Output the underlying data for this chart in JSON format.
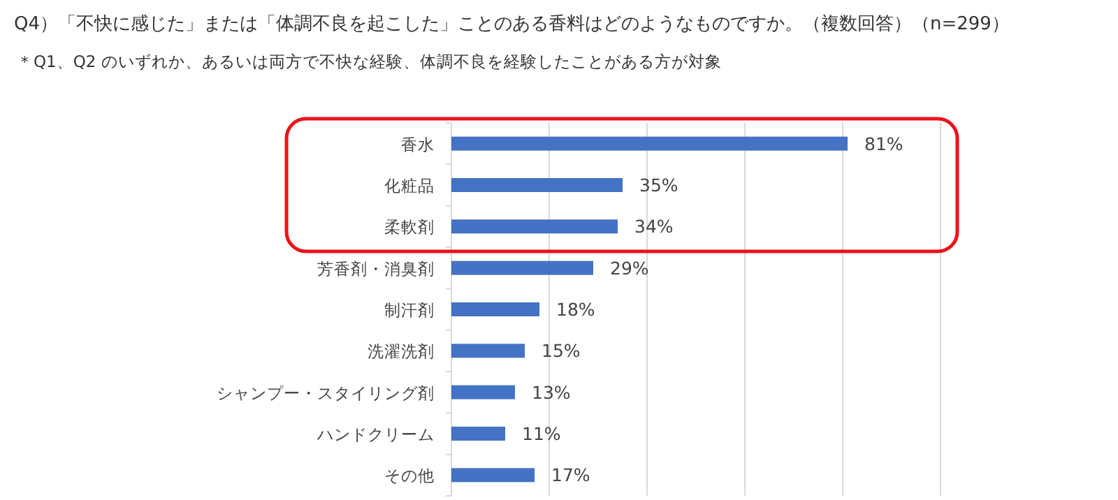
{
  "chart_data": {
    "type": "bar",
    "orientation": "horizontal",
    "title": "Q4）「不快に感じた」または「体調不良を起こした」ことのある香料はどのようなものですか。（複数回答）（n=299）",
    "subtitle": "＊Q1、Q2 のいずれか、あるいは両方で不快な経験、体調不良を経験したことがある方が対象",
    "categories": [
      "香水",
      "化粧品",
      "柔軟剤",
      "芳香剤・消臭剤",
      "制汗剤",
      "洗濯洗剤",
      "シャンプー・スタイリング剤",
      "ハンドクリーム",
      "その他"
    ],
    "values": [
      81,
      35,
      34,
      29,
      18,
      15,
      13,
      11,
      17
    ],
    "value_labels": [
      "81%",
      "35%",
      "34%",
      "29%",
      "18%",
      "15%",
      "13%",
      "11%",
      "17%"
    ],
    "color": "#4472c4",
    "xlim": [
      0,
      100
    ],
    "xticks": [
      {
        "value": 0,
        "label": null
      },
      {
        "value": 20,
        "label": null
      },
      {
        "value": 40,
        "label": null
      },
      {
        "value": 60,
        "label": null
      },
      {
        "value": 80,
        "label": null
      },
      {
        "value": 100,
        "label": null
      }
    ],
    "tick_labels": "y",
    "grid": "x"
  }
}
